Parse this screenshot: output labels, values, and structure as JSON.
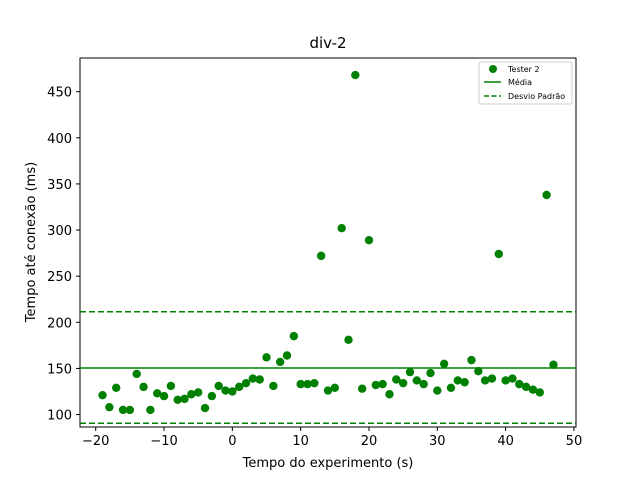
{
  "chart_data": {
    "type": "scatter",
    "title": "div-2",
    "xlabel": "Tempo do experimento (s)",
    "ylabel": "Tempo até conexão (ms)",
    "xlim": [
      -22.3,
      50.3
    ],
    "ylim": [
      86.5,
      486.5
    ],
    "x_ticks": [
      -20,
      -10,
      0,
      10,
      20,
      30,
      40,
      50
    ],
    "x_tick_labels": [
      "−20",
      "−10",
      "0",
      "10",
      "20",
      "30",
      "40",
      "50"
    ],
    "y_ticks": [
      100,
      150,
      200,
      250,
      300,
      350,
      400,
      450
    ],
    "y_tick_labels": [
      "100",
      "150",
      "200",
      "250",
      "300",
      "350",
      "400",
      "450"
    ],
    "grid": false,
    "legend_position": "top-right",
    "color": "#008000",
    "series": [
      {
        "name": "Tester 2",
        "x": [
          -19,
          -18,
          -17,
          -16,
          -15,
          -14,
          -13,
          -12,
          -11,
          -10,
          -9,
          -8,
          -7,
          -6,
          -5,
          -4,
          -3,
          -2,
          -1,
          0,
          1,
          2,
          3,
          4,
          5,
          6,
          7,
          8,
          9,
          10,
          11,
          12,
          13,
          14,
          15,
          16,
          17,
          18,
          19,
          20,
          21,
          22,
          23,
          24,
          25,
          26,
          27,
          28,
          29,
          30,
          31,
          32,
          33,
          34,
          35,
          36,
          37,
          38,
          39,
          40,
          41,
          42,
          43,
          44,
          45,
          46,
          47
        ],
        "y": [
          121,
          108,
          129,
          105,
          105,
          144,
          130,
          105,
          123,
          120,
          131,
          116,
          117,
          122,
          124,
          107,
          120,
          131,
          126,
          125,
          130,
          134,
          139,
          138,
          162,
          131,
          157,
          164,
          185,
          133,
          133,
          134,
          272,
          126,
          129,
          302,
          181,
          468,
          128,
          289,
          132,
          133,
          122,
          138,
          134,
          146,
          137,
          133,
          145,
          126,
          155,
          129,
          137,
          135,
          159,
          147,
          137,
          139,
          274,
          137,
          139,
          133,
          130,
          127,
          124,
          338,
          154
        ]
      }
    ],
    "reference_lines": [
      {
        "name": "Média",
        "y": 150.5,
        "style": "solid"
      },
      {
        "name": "Desvio Padrão",
        "y": 211.5,
        "style": "dashed"
      },
      {
        "name": "Desvio Padrão",
        "y": 90.5,
        "style": "dashed"
      }
    ],
    "legend": [
      "Tester 2",
      "Média",
      "Desvio Padrão"
    ]
  }
}
